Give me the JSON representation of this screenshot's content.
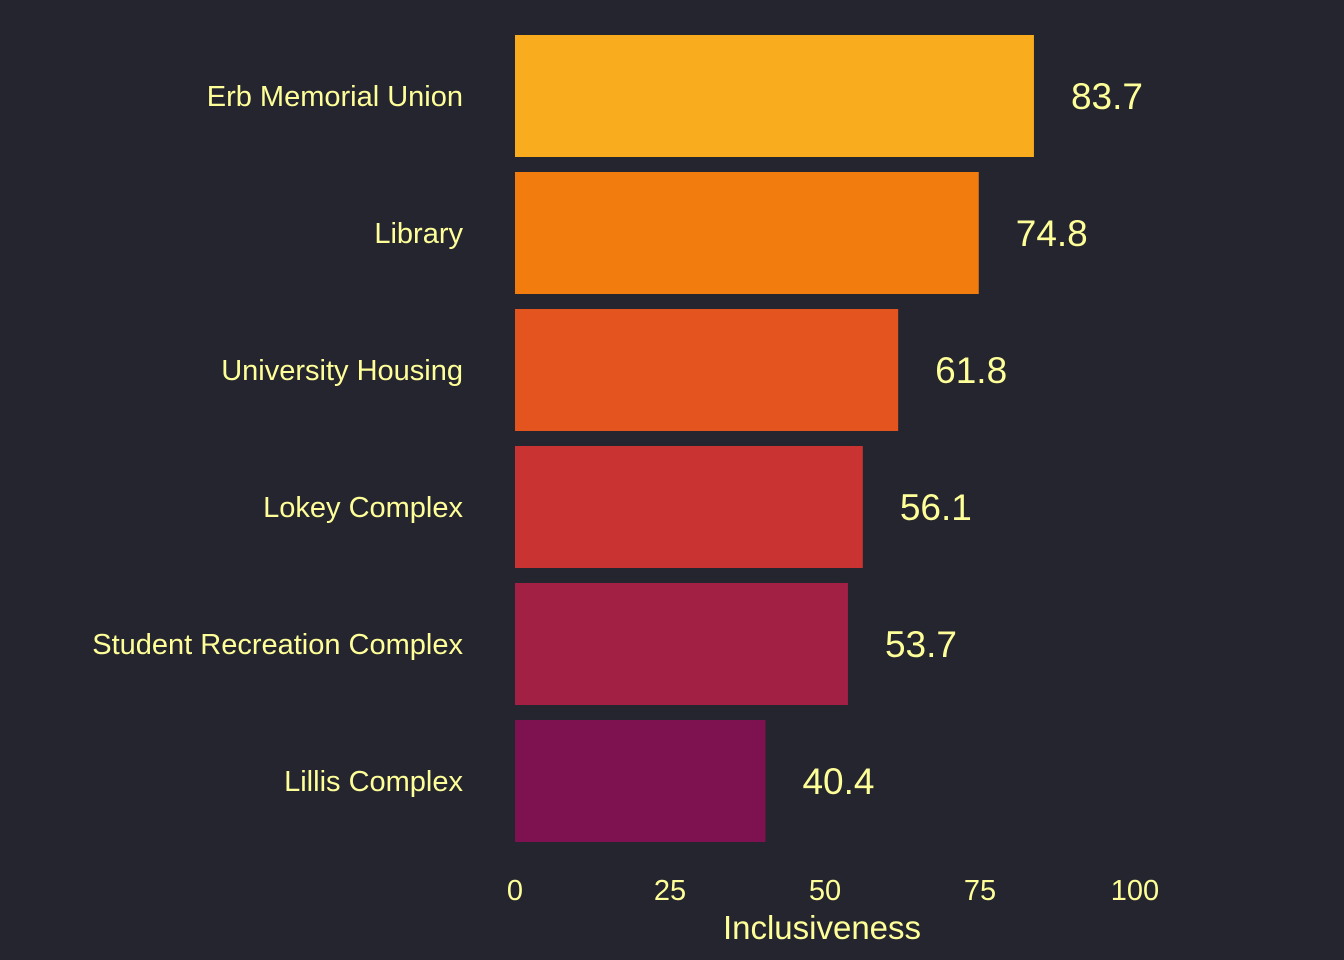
{
  "chart_data": {
    "type": "bar",
    "orientation": "horizontal",
    "categories": [
      "Erb Memorial Union",
      "Library",
      "University Housing",
      "Lokey Complex",
      "Student Recreation Complex",
      "Lillis Complex"
    ],
    "values": [
      83.7,
      74.8,
      61.8,
      56.1,
      53.7,
      40.4
    ],
    "value_labels": [
      "83.7",
      "74.8",
      "61.8",
      "56.1",
      "53.7",
      "40.4"
    ],
    "colors": [
      "#f8ac1e",
      "#f37c0f",
      "#e3541f",
      "#c93432",
      "#a32045",
      "#7e1250"
    ],
    "xlabel": "Inclusiveness",
    "xlim": [
      0,
      100
    ],
    "xticks": [
      0,
      25,
      50,
      75,
      100
    ],
    "xtick_labels": [
      "0",
      "25",
      "50",
      "75",
      "100"
    ],
    "grid": false,
    "legend": "none",
    "background_color": "#24252e",
    "text_color": "#ffff99"
  }
}
